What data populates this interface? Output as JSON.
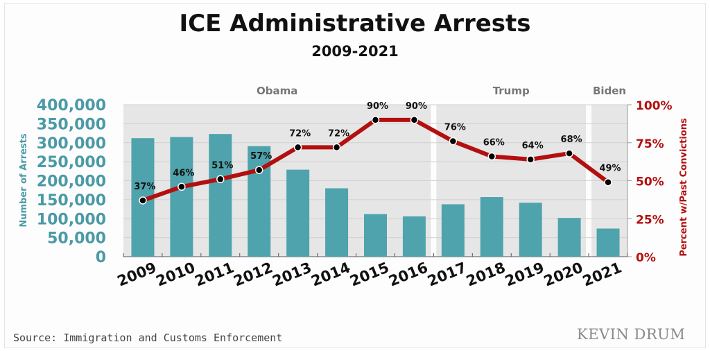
{
  "chart_data": {
    "type": "bar",
    "title": "ICE Administrative Arrests",
    "subtitle": "2009-2021",
    "categories": [
      "2009",
      "2010",
      "2011",
      "2012",
      "2013",
      "2014",
      "2015",
      "2016",
      "2017",
      "2018",
      "2019",
      "2020",
      "2021"
    ],
    "series": [
      {
        "name": "Number of Arrests",
        "type": "bar",
        "axis": "left",
        "color": "#4fa3ad",
        "values": [
          312000,
          315000,
          323000,
          291000,
          229000,
          180000,
          112000,
          106000,
          138000,
          157000,
          142000,
          102000,
          74000
        ]
      },
      {
        "name": "Percent w/Past Convictions",
        "type": "line",
        "axis": "right",
        "color": "#b30f0f",
        "values": [
          37,
          46,
          51,
          57,
          72,
          72,
          90,
          90,
          76,
          66,
          64,
          68,
          49
        ],
        "labels": [
          "37%",
          "46%",
          "51%",
          "57%",
          "72%",
          "72%",
          "90%",
          "90%",
          "76%",
          "66%",
          "64%",
          "68%",
          "49%"
        ]
      }
    ],
    "ylabel": "Number of Arrests",
    "ylim": [
      0,
      400000
    ],
    "yticks": [
      "0",
      "50,000",
      "100,000",
      "150,000",
      "200,000",
      "250,000",
      "300,000",
      "350,000",
      "400,000"
    ],
    "y2label": "Percent w/Past Convictions",
    "y2lim": [
      0,
      100
    ],
    "y2ticks": [
      "0%",
      "25%",
      "50%",
      "75%",
      "100%"
    ],
    "grid": true,
    "eras": [
      {
        "label": "Obama",
        "from": "2009",
        "to": "2016"
      },
      {
        "label": "Trump",
        "from": "2017",
        "to": "2020"
      },
      {
        "label": "Biden",
        "from": "2021",
        "to": "2021"
      }
    ]
  },
  "source": "Source: Immigration and Customs Enforcement",
  "logo": "KEVIN DRUM"
}
